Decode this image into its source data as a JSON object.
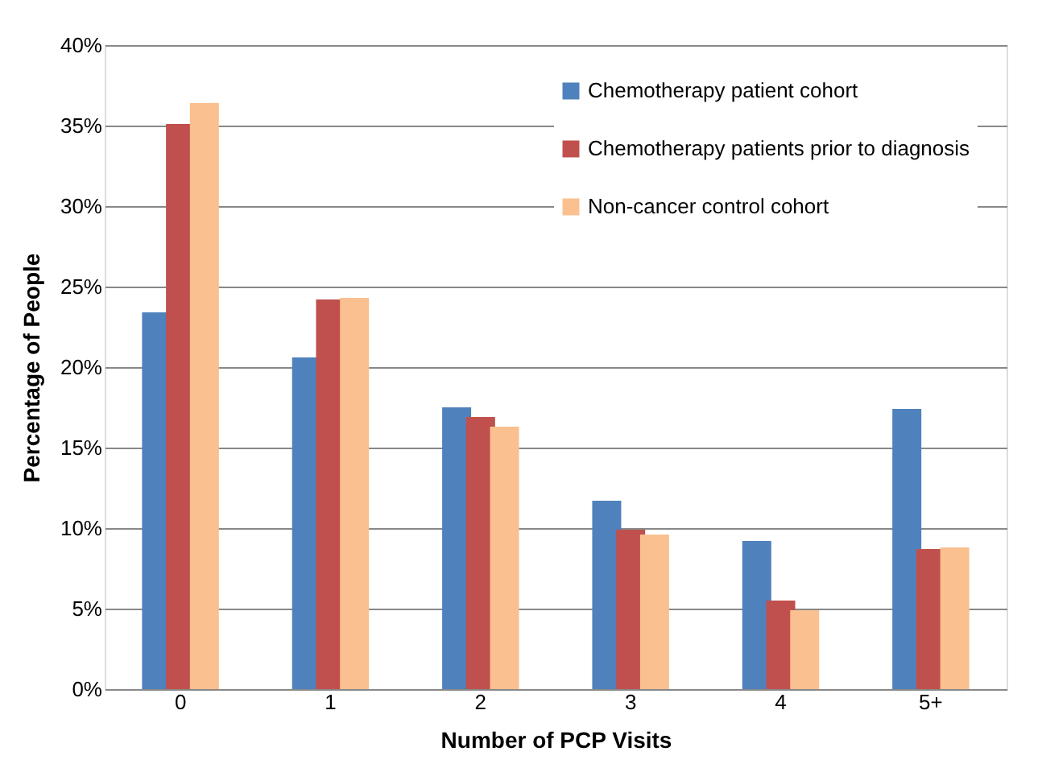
{
  "chart_data": {
    "type": "bar",
    "xlabel": "Number of PCP Visits",
    "ylabel": "Percentage of People",
    "categories": [
      "0",
      "1",
      "2",
      "3",
      "4",
      "5+"
    ],
    "series": [
      {
        "name": "Chemotherapy patient cohort",
        "color": "#4f81bd",
        "values": [
          23.4,
          20.6,
          17.5,
          11.7,
          9.2,
          17.4
        ]
      },
      {
        "name": "Chemotherapy patients prior to diagnosis",
        "color": "#c0504d",
        "values": [
          35.1,
          24.2,
          16.9,
          9.9,
          5.5,
          8.7
        ]
      },
      {
        "name": "Non-cancer control cohort",
        "color": "#fac090",
        "values": [
          36.4,
          24.3,
          16.3,
          9.6,
          4.9,
          8.8
        ]
      }
    ],
    "ylim": [
      0,
      40
    ],
    "yticks": [
      {
        "value": 0,
        "label": "0%"
      },
      {
        "value": 5,
        "label": "5%"
      },
      {
        "value": 10,
        "label": "10%"
      },
      {
        "value": 15,
        "label": "15%"
      },
      {
        "value": 20,
        "label": "20%"
      },
      {
        "value": 25,
        "label": "25%"
      },
      {
        "value": 30,
        "label": "30%"
      },
      {
        "value": 35,
        "label": "35%"
      },
      {
        "value": 40,
        "label": "40%"
      }
    ],
    "grid": "y",
    "legend": "top right"
  }
}
